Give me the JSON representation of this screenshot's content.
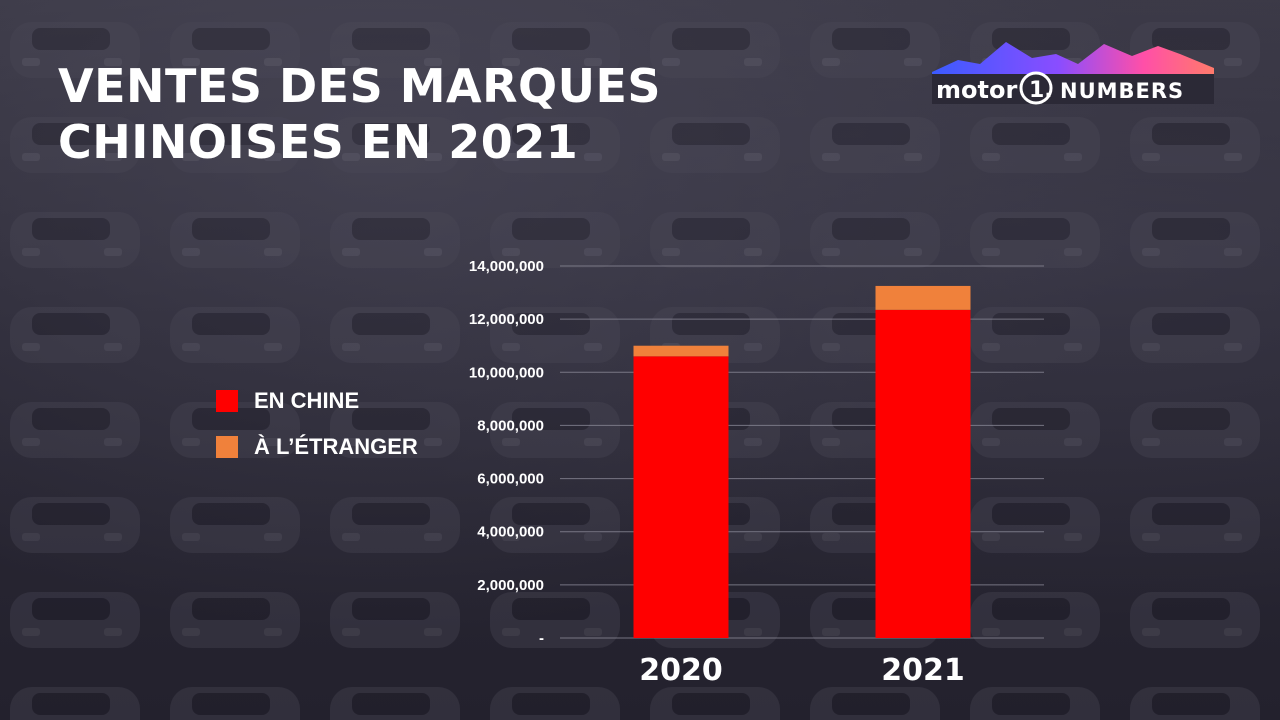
{
  "title": {
    "line1": "VENTES DES MARQUES",
    "line2": "CHINOISES EN 2021"
  },
  "logo": {
    "text_left": "motor",
    "text_mark": "1.",
    "text_right": "NUMBERS"
  },
  "colors": {
    "domestic": "#ff0000",
    "export": "#f0813b",
    "text": "#ffffff",
    "grid": "#8a8896"
  },
  "legend": {
    "placement": "left",
    "items": [
      {
        "label": "EN CHINE",
        "color": "#ff0000"
      },
      {
        "label": "À L’ÉTRANGER",
        "color": "#f0813b"
      }
    ]
  },
  "chart_data": {
    "type": "bar",
    "stacked": true,
    "title": "VENTES DES MARQUES CHINOISES EN 2021",
    "xlabel": "",
    "ylabel": "",
    "categories": [
      "2020",
      "2021"
    ],
    "series": [
      {
        "name": "EN CHINE",
        "values": [
          10600000,
          12350000
        ]
      },
      {
        "name": "À L’ÉTRANGER",
        "values": [
          400000,
          900000
        ]
      }
    ],
    "ylim": [
      0,
      14000000
    ],
    "yticks": [
      {
        "value": 0,
        "label": "-"
      },
      {
        "value": 2000000,
        "label": "2,000,000"
      },
      {
        "value": 4000000,
        "label": "4,000,000"
      },
      {
        "value": 6000000,
        "label": "6,000,000"
      },
      {
        "value": 8000000,
        "label": "8,000,000"
      },
      {
        "value": 10000000,
        "label": "10,000,000"
      },
      {
        "value": 12000000,
        "label": "12,000,000"
      },
      {
        "value": 14000000,
        "label": "14,000,000"
      }
    ],
    "grid": true,
    "legend_placement": "left"
  }
}
